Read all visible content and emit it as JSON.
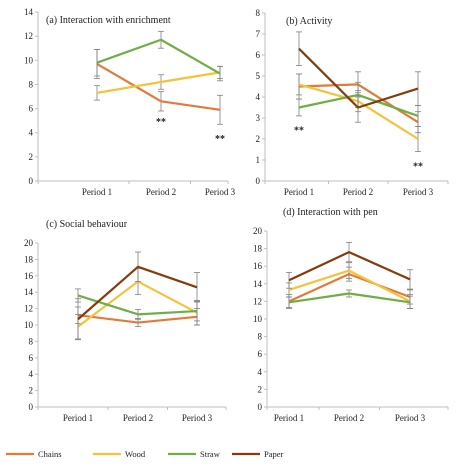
{
  "colors": {
    "Chains": "#e07b39",
    "Wood": "#f5c23c",
    "Straw": "#70ad47",
    "Paper": "#843c0c",
    "axis": "#bfbfbf",
    "error": "#808080"
  },
  "legend": [
    "Chains",
    "Wood",
    "Straw",
    "Paper"
  ],
  "chart_data": [
    {
      "type": "line",
      "title": "(a) Interaction with enrichment",
      "categories": [
        "Period 1",
        "Period 2",
        "Period 3"
      ],
      "ylim": [
        0,
        14
      ],
      "yticks": [
        0,
        2,
        4,
        6,
        8,
        10,
        12,
        14
      ],
      "series": [
        {
          "name": "Chains",
          "values": [
            9.7,
            6.6,
            5.9
          ],
          "errors": [
            1.2,
            0.8,
            1.2
          ]
        },
        {
          "name": "Wood",
          "values": [
            7.3,
            8.2,
            9.0
          ],
          "errors": [
            0.6,
            0.6,
            0.5
          ]
        },
        {
          "name": "Straw",
          "values": [
            9.8,
            11.7,
            8.9
          ],
          "errors": [
            1.1,
            0.7,
            0.6
          ]
        }
      ],
      "annotations": [
        {
          "text": "**",
          "category": "Period 2",
          "y": 4.9
        },
        {
          "text": "**",
          "category": "Period 3",
          "y": 3.5
        }
      ]
    },
    {
      "type": "line",
      "title": "(b)   Activity",
      "categories": [
        "Period 1",
        "Period 2",
        "Period 3"
      ],
      "ylim": [
        0,
        8
      ],
      "yticks": [
        0,
        1,
        2,
        3,
        4,
        5,
        6,
        7,
        8
      ],
      "series": [
        {
          "name": "Chains",
          "values": [
            4.5,
            4.6,
            2.8
          ],
          "errors": [
            0.6,
            0.6,
            0.5
          ]
        },
        {
          "name": "Wood",
          "values": [
            4.6,
            3.8,
            2.0
          ],
          "errors": [
            0.5,
            0.5,
            0.6
          ]
        },
        {
          "name": "Straw",
          "values": [
            3.5,
            4.1,
            3.1
          ],
          "errors": [
            0.4,
            0.6,
            0.5
          ]
        },
        {
          "name": "Paper",
          "values": [
            6.3,
            3.5,
            4.4
          ],
          "errors": [
            0.8,
            0.7,
            0.8
          ]
        }
      ],
      "annotations": [
        {
          "text": "**",
          "category": "Period 1",
          "y": 2.4
        },
        {
          "text": "**",
          "category": "Period 3",
          "y": 0.7
        }
      ]
    },
    {
      "type": "line",
      "title": "(c) Social behaviour",
      "categories": [
        "Period 1",
        "Period 2",
        "Period 3"
      ],
      "ylim": [
        0,
        20
      ],
      "yticks": [
        0,
        2,
        4,
        6,
        8,
        10,
        12,
        14,
        16,
        18,
        20
      ],
      "series": [
        {
          "name": "Chains",
          "values": [
            11.2,
            10.3,
            11.0
          ],
          "errors": [
            1.0,
            0.5,
            1.0
          ]
        },
        {
          "name": "Wood",
          "values": [
            9.8,
            15.3,
            11.5
          ],
          "errors": [
            1.5,
            1.6,
            1.5
          ]
        },
        {
          "name": "Straw",
          "values": [
            13.6,
            11.3,
            11.7
          ],
          "errors": [
            0.8,
            0.6,
            1.2
          ]
        },
        {
          "name": "Paper",
          "values": [
            10.7,
            17.1,
            14.6
          ],
          "errors": [
            2.5,
            1.8,
            1.8
          ]
        }
      ]
    },
    {
      "type": "line",
      "title": "(d) Interaction with pen",
      "categories": [
        "Period 1",
        "Period 2",
        "Period 3"
      ],
      "ylim": [
        0,
        20
      ],
      "yticks": [
        0,
        2,
        4,
        6,
        8,
        10,
        12,
        14,
        16,
        18,
        20
      ],
      "series": [
        {
          "name": "Chains",
          "values": [
            12.0,
            15.1,
            12.5
          ],
          "errors": [
            0.8,
            0.8,
            0.8
          ]
        },
        {
          "name": "Wood",
          "values": [
            13.3,
            15.5,
            12.0
          ],
          "errors": [
            0.8,
            0.9,
            0.8
          ]
        },
        {
          "name": "Straw",
          "values": [
            11.9,
            12.9,
            11.9
          ],
          "errors": [
            0.6,
            0.4,
            0.7
          ]
        },
        {
          "name": "Paper",
          "values": [
            14.4,
            17.6,
            14.5
          ],
          "errors": [
            0.9,
            1.1,
            1.1
          ]
        }
      ]
    }
  ]
}
